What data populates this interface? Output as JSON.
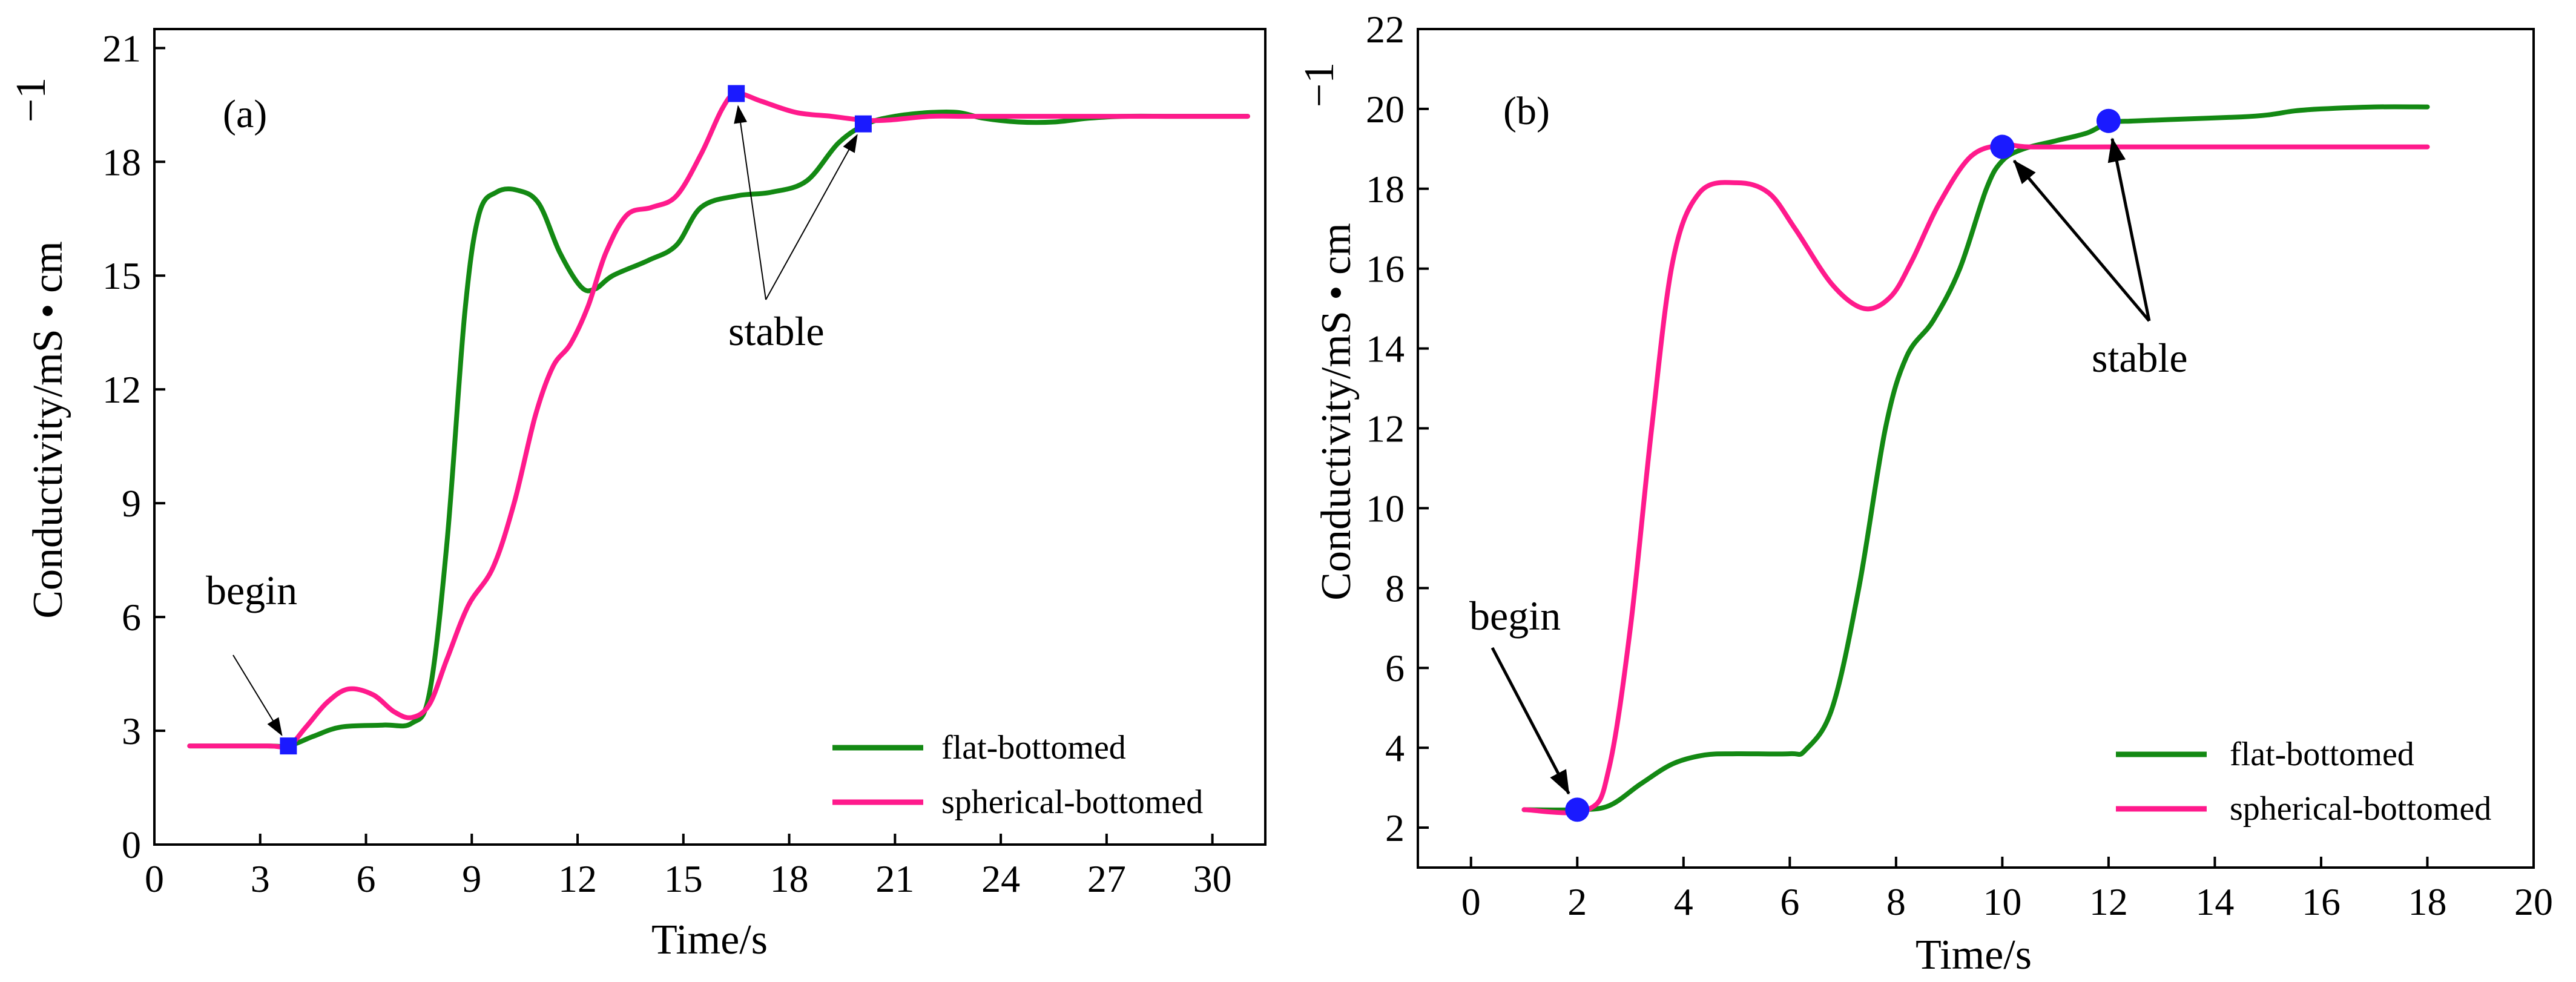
{
  "chart_data": [
    {
      "type": "line",
      "panel_label": "(a)",
      "xlabel": "Time/s",
      "ylabel": "Conductivity/mS • cm",
      "ylabel_exponent": "−1",
      "xlim": [
        0,
        31.5
      ],
      "ylim": [
        0,
        21.5
      ],
      "xticks": [
        0,
        3,
        6,
        9,
        12,
        15,
        18,
        21,
        24,
        27,
        30
      ],
      "yticks": [
        0,
        3,
        6,
        9,
        12,
        15,
        18,
        21
      ],
      "legend_position": "bottom-right",
      "series": [
        {
          "name": "flat-bottomed",
          "color": "#138913",
          "points": [
            [
              1,
              2.6
            ],
            [
              3.2,
              2.6
            ],
            [
              3.8,
              2.6
            ],
            [
              4.5,
              2.85
            ],
            [
              5.3,
              3.1
            ],
            [
              6.5,
              3.15
            ],
            [
              7.3,
              3.2
            ],
            [
              7.8,
              4
            ],
            [
              8.3,
              8
            ],
            [
              8.8,
              14
            ],
            [
              9.2,
              16.6
            ],
            [
              9.7,
              17.2
            ],
            [
              10.3,
              17.25
            ],
            [
              10.9,
              16.9
            ],
            [
              11.5,
              15.6
            ],
            [
              12.1,
              14.7
            ],
            [
              12.5,
              14.65
            ],
            [
              13,
              15
            ],
            [
              14,
              15.4
            ],
            [
              14.8,
              15.8
            ],
            [
              15.5,
              16.8
            ],
            [
              16.5,
              17.1
            ],
            [
              17.5,
              17.2
            ],
            [
              18.5,
              17.5
            ],
            [
              19.4,
              18.5
            ],
            [
              20.2,
              19
            ],
            [
              21,
              19.2
            ],
            [
              22,
              19.3
            ],
            [
              22.8,
              19.3
            ],
            [
              23.5,
              19.15
            ],
            [
              24.5,
              19.05
            ],
            [
              25.5,
              19.05
            ],
            [
              26.5,
              19.15
            ],
            [
              27.5,
              19.2
            ],
            [
              29,
              19.2
            ],
            [
              31,
              19.2
            ]
          ]
        },
        {
          "name": "spherical-bottomed",
          "color": "#ff1a8c",
          "points": [
            [
              1,
              2.6
            ],
            [
              3.2,
              2.6
            ],
            [
              3.8,
              2.6
            ],
            [
              4.3,
              3.1
            ],
            [
              4.9,
              3.75
            ],
            [
              5.5,
              4.1
            ],
            [
              6.2,
              3.95
            ],
            [
              6.8,
              3.5
            ],
            [
              7.3,
              3.35
            ],
            [
              7.8,
              3.7
            ],
            [
              8.3,
              4.9
            ],
            [
              8.9,
              6.3
            ],
            [
              9.6,
              7.3
            ],
            [
              10.2,
              9
            ],
            [
              10.8,
              11.3
            ],
            [
              11.3,
              12.6
            ],
            [
              11.8,
              13.2
            ],
            [
              12.3,
              14.2
            ],
            [
              12.8,
              15.6
            ],
            [
              13.4,
              16.6
            ],
            [
              14.1,
              16.8
            ],
            [
              14.8,
              17.1
            ],
            [
              15.5,
              18.2
            ],
            [
              16.1,
              19.4
            ],
            [
              16.5,
              19.8
            ],
            [
              17.2,
              19.6
            ],
            [
              18.2,
              19.3
            ],
            [
              19.2,
              19.2
            ],
            [
              20.1,
              19.1
            ],
            [
              20.8,
              19.1
            ],
            [
              22,
              19.2
            ],
            [
              23,
              19.2
            ],
            [
              25,
              19.2
            ],
            [
              31,
              19.2
            ]
          ]
        }
      ],
      "markers": [
        {
          "label": "begin",
          "x": 3.8,
          "y": 2.6,
          "shape": "square"
        },
        {
          "label": "stable",
          "x": 16.5,
          "y": 19.8,
          "shape": "square"
        },
        {
          "label": "stable",
          "x": 20.1,
          "y": 19.0,
          "shape": "square"
        }
      ],
      "annotations": [
        {
          "text": "begin",
          "arrows_to": [
            [
              3.8,
              2.6
            ]
          ]
        },
        {
          "text": "stable",
          "arrows_to": [
            [
              16.5,
              19.8
            ],
            [
              20.1,
              19.0
            ]
          ]
        }
      ],
      "marker_color": "#1a1aff"
    },
    {
      "type": "line",
      "panel_label": "(b)",
      "xlabel": "Time/s",
      "ylabel": "Conductivity/mS • cm",
      "ylabel_exponent": "−1",
      "xlim": [
        -1,
        20
      ],
      "ylim": [
        1,
        22
      ],
      "xticks": [
        0,
        2,
        4,
        6,
        8,
        10,
        12,
        14,
        16,
        18,
        20
      ],
      "yticks": [
        2,
        4,
        6,
        8,
        10,
        12,
        14,
        16,
        18,
        20,
        22
      ],
      "legend_position": "bottom-right",
      "series": [
        {
          "name": "flat-bottomed",
          "color": "#138913",
          "points": [
            [
              1,
              2.45
            ],
            [
              2,
              2.45
            ],
            [
              2.6,
              2.55
            ],
            [
              3.2,
              3.1
            ],
            [
              3.8,
              3.6
            ],
            [
              4.4,
              3.82
            ],
            [
              5,
              3.85
            ],
            [
              6,
              3.85
            ],
            [
              6.3,
              3.95
            ],
            [
              6.8,
              5
            ],
            [
              7.3,
              8
            ],
            [
              7.8,
              12
            ],
            [
              8.2,
              13.8
            ],
            [
              8.7,
              14.7
            ],
            [
              9.2,
              16
            ],
            [
              9.7,
              18
            ],
            [
              10,
              18.7
            ],
            [
              10.4,
              19
            ],
            [
              11,
              19.2
            ],
            [
              11.6,
              19.4
            ],
            [
              12,
              19.65
            ],
            [
              12.5,
              19.7
            ],
            [
              13.5,
              19.75
            ],
            [
              14.5,
              19.8
            ],
            [
              15,
              19.85
            ],
            [
              15.5,
              19.95
            ],
            [
              16,
              20
            ],
            [
              17,
              20.05
            ],
            [
              18,
              20.05
            ]
          ]
        },
        {
          "name": "spherical-bottomed",
          "color": "#ff1a8c",
          "points": [
            [
              1,
              2.45
            ],
            [
              2.2,
              2.45
            ],
            [
              2.6,
              3.5
            ],
            [
              3,
              7
            ],
            [
              3.4,
              12
            ],
            [
              3.8,
              16.2
            ],
            [
              4.3,
              17.9
            ],
            [
              5,
              18.15
            ],
            [
              5.6,
              17.9
            ],
            [
              6.1,
              17
            ],
            [
              6.8,
              15.6
            ],
            [
              7.4,
              15
            ],
            [
              7.9,
              15.3
            ],
            [
              8.3,
              16.2
            ],
            [
              8.8,
              17.6
            ],
            [
              9.4,
              18.8
            ],
            [
              10,
              19.1
            ],
            [
              10.5,
              19.05
            ],
            [
              12,
              19.05
            ],
            [
              14,
              19.05
            ],
            [
              16,
              19.05
            ],
            [
              18,
              19.05
            ]
          ]
        }
      ],
      "markers": [
        {
          "label": "begin",
          "x": 2,
          "y": 2.45,
          "shape": "circle"
        },
        {
          "label": "stable",
          "x": 10,
          "y": 19.05,
          "shape": "circle"
        },
        {
          "label": "stable",
          "x": 12,
          "y": 19.7,
          "shape": "circle"
        }
      ],
      "annotations": [
        {
          "text": "begin",
          "arrows_to": [
            [
              2,
              2.45
            ]
          ]
        },
        {
          "text": "stable",
          "arrows_to": [
            [
              10,
              19.05
            ],
            [
              12,
              19.7
            ]
          ]
        }
      ],
      "marker_color": "#1a1aff"
    }
  ]
}
